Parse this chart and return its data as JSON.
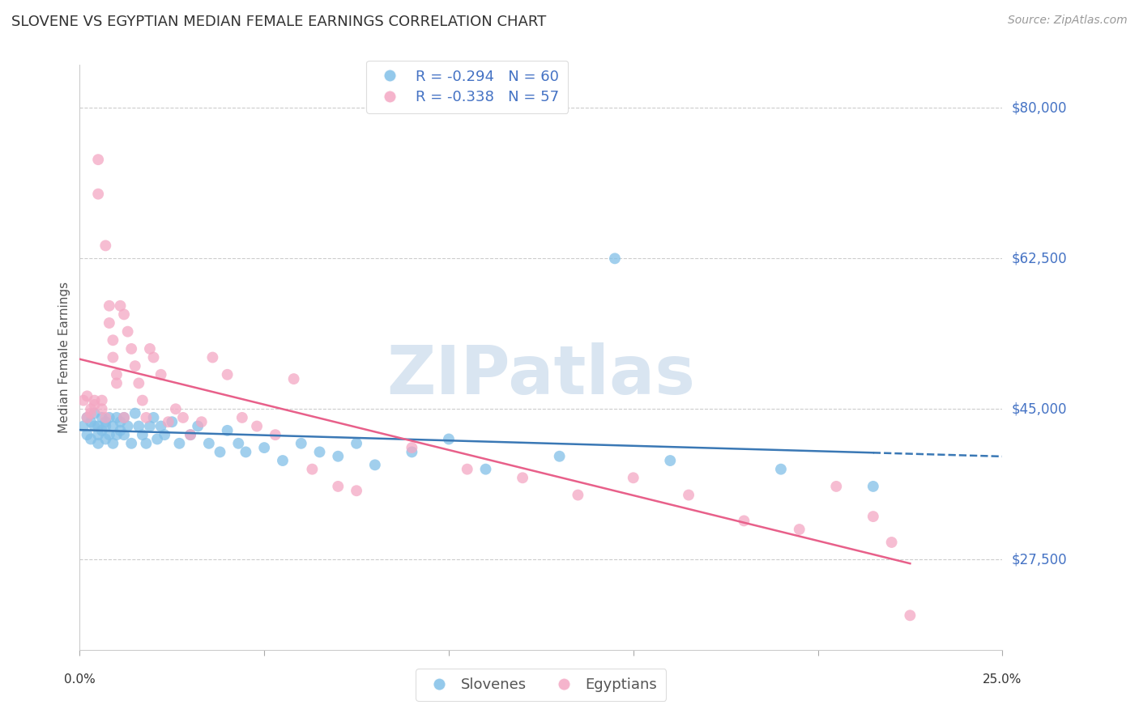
{
  "title": "SLOVENE VS EGYPTIAN MEDIAN FEMALE EARNINGS CORRELATION CHART",
  "source": "Source: ZipAtlas.com",
  "ylabel": "Median Female Earnings",
  "yticks": [
    27500,
    45000,
    62500,
    80000
  ],
  "ytick_labels": [
    "$27,500",
    "$45,000",
    "$62,500",
    "$80,000"
  ],
  "xlim": [
    0.0,
    0.25
  ],
  "ylim": [
    17000,
    85000
  ],
  "slovene_color": "#82c0e8",
  "egyptian_color": "#f4a7c3",
  "slovene_line_color": "#3a78b5",
  "egyptian_line_color": "#e8608a",
  "legend_R_slovene": "R = -0.294",
  "legend_N_slovene": "N = 60",
  "legend_R_egyptian": "R = -0.338",
  "legend_N_egyptian": "N = 57",
  "slovene_x": [
    0.001,
    0.002,
    0.002,
    0.003,
    0.003,
    0.004,
    0.004,
    0.005,
    0.005,
    0.005,
    0.006,
    0.006,
    0.007,
    0.007,
    0.007,
    0.008,
    0.008,
    0.009,
    0.009,
    0.01,
    0.01,
    0.011,
    0.011,
    0.012,
    0.012,
    0.013,
    0.014,
    0.015,
    0.016,
    0.017,
    0.018,
    0.019,
    0.02,
    0.021,
    0.022,
    0.023,
    0.025,
    0.027,
    0.03,
    0.032,
    0.035,
    0.038,
    0.04,
    0.043,
    0.045,
    0.05,
    0.055,
    0.06,
    0.065,
    0.07,
    0.075,
    0.08,
    0.09,
    0.1,
    0.11,
    0.13,
    0.145,
    0.16,
    0.19,
    0.215
  ],
  "slovene_y": [
    43000,
    44000,
    42000,
    41500,
    43500,
    43000,
    44500,
    42000,
    41000,
    43000,
    44000,
    42500,
    43000,
    41500,
    43500,
    42000,
    44000,
    41000,
    43000,
    42000,
    44000,
    42500,
    43500,
    44000,
    42000,
    43000,
    41000,
    44500,
    43000,
    42000,
    41000,
    43000,
    44000,
    41500,
    43000,
    42000,
    43500,
    41000,
    42000,
    43000,
    41000,
    40000,
    42500,
    41000,
    40000,
    40500,
    39000,
    41000,
    40000,
    39500,
    41000,
    38500,
    40000,
    41500,
    38000,
    39500,
    62500,
    39000,
    38000,
    36000
  ],
  "egyptian_x": [
    0.001,
    0.002,
    0.002,
    0.003,
    0.003,
    0.004,
    0.004,
    0.005,
    0.005,
    0.006,
    0.006,
    0.007,
    0.007,
    0.008,
    0.008,
    0.009,
    0.009,
    0.01,
    0.01,
    0.011,
    0.012,
    0.012,
    0.013,
    0.014,
    0.015,
    0.016,
    0.017,
    0.018,
    0.019,
    0.02,
    0.022,
    0.024,
    0.026,
    0.028,
    0.03,
    0.033,
    0.036,
    0.04,
    0.044,
    0.048,
    0.053,
    0.058,
    0.063,
    0.07,
    0.075,
    0.09,
    0.105,
    0.12,
    0.135,
    0.15,
    0.165,
    0.18,
    0.195,
    0.205,
    0.215,
    0.22,
    0.225
  ],
  "egyptian_y": [
    46000,
    44000,
    46500,
    45000,
    44500,
    45500,
    46000,
    74000,
    70000,
    45000,
    46000,
    64000,
    44000,
    57000,
    55000,
    53000,
    51000,
    49000,
    48000,
    57000,
    56000,
    44000,
    54000,
    52000,
    50000,
    48000,
    46000,
    44000,
    52000,
    51000,
    49000,
    43500,
    45000,
    44000,
    42000,
    43500,
    51000,
    49000,
    44000,
    43000,
    42000,
    48500,
    38000,
    36000,
    35500,
    40500,
    38000,
    37000,
    35000,
    37000,
    35000,
    32000,
    31000,
    36000,
    32500,
    29500,
    21000
  ],
  "background_color": "#ffffff",
  "grid_color": "#cccccc",
  "watermark": "ZIPatlas",
  "watermark_color": "#c0d4e8",
  "title_fontsize": 13,
  "source_fontsize": 10,
  "axis_label_fontsize": 11,
  "ytick_fontsize": 12,
  "legend_fontsize": 13
}
